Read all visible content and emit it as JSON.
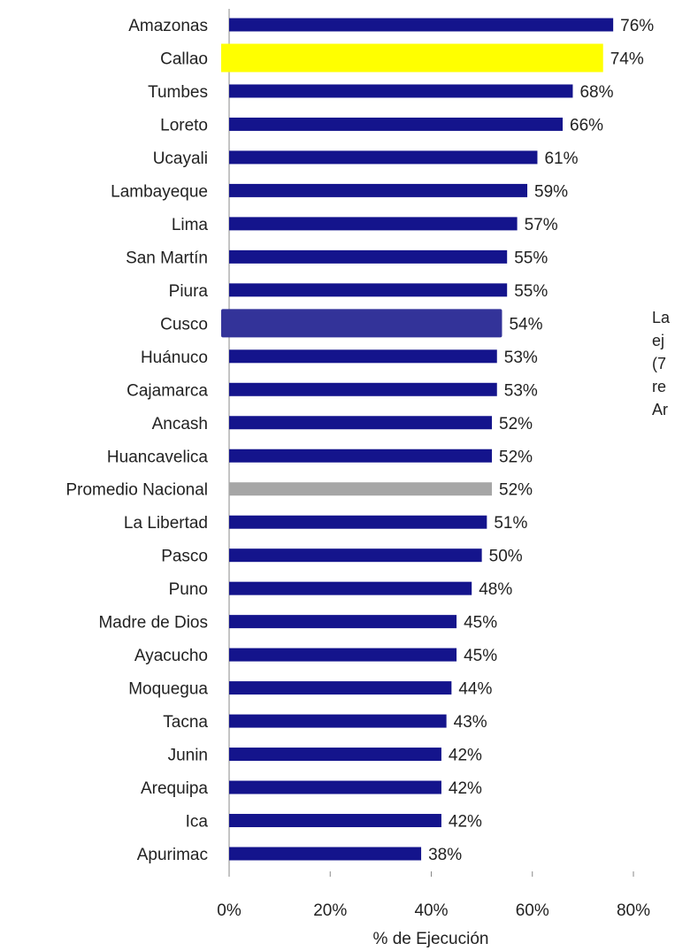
{
  "chart_data": {
    "type": "bar",
    "orientation": "horizontal",
    "categories": [
      "Amazonas",
      "Callao",
      "Tumbes",
      "Loreto",
      "Ucayali",
      "Lambayeque",
      "Lima",
      "San Martín",
      "Piura",
      "Cusco",
      "Huánuco",
      "Cajamarca",
      "Ancash",
      "Huancavelica",
      "Promedio Nacional",
      "La Libertad",
      "Pasco",
      "Puno",
      "Madre de Dios",
      "Ayacucho",
      "Moquegua",
      "Tacna",
      "Junin",
      "Arequipa",
      "Ica",
      "Apurimac"
    ],
    "values": [
      76,
      74,
      68,
      66,
      61,
      59,
      57,
      55,
      55,
      54,
      53,
      53,
      52,
      52,
      52,
      51,
      50,
      48,
      45,
      45,
      44,
      43,
      42,
      42,
      42,
      38
    ],
    "value_labels": [
      "76%",
      "74%",
      "68%",
      "66%",
      "61%",
      "59%",
      "57%",
      "55%",
      "55%",
      "54%",
      "53%",
      "53%",
      "52%",
      "52%",
      "52%",
      "51%",
      "50%",
      "48%",
      "45%",
      "45%",
      "44%",
      "43%",
      "42%",
      "42%",
      "42%",
      "38%"
    ],
    "colors": [
      "#14148c",
      "#ffff00",
      "#14148c",
      "#14148c",
      "#14148c",
      "#14148c",
      "#14148c",
      "#14148c",
      "#14148c",
      "#333399",
      "#14148c",
      "#14148c",
      "#14148c",
      "#14148c",
      "#a6a6a6",
      "#14148c",
      "#14148c",
      "#14148c",
      "#14148c",
      "#14148c",
      "#14148c",
      "#14148c",
      "#14148c",
      "#14148c",
      "#14148c",
      "#14148c"
    ],
    "xlim": [
      0,
      80
    ],
    "xticks": [
      {
        "value": 0,
        "label": "0%"
      },
      {
        "value": 20,
        "label": "20%"
      },
      {
        "value": 40,
        "label": "40%"
      },
      {
        "value": 60,
        "label": "60%"
      },
      {
        "value": 80,
        "label": "80%"
      }
    ],
    "x_label": "% de Ejecución",
    "annotation": [
      "La",
      "ej",
      "(7",
      "re",
      "Ar"
    ]
  }
}
